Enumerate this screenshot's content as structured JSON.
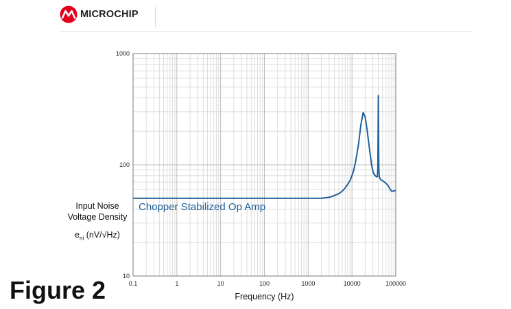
{
  "header": {
    "brand": "MICROCHIP",
    "brand_color": "#E3001B"
  },
  "figure_label": "Figure 2",
  "chart_data": {
    "type": "line",
    "title": "",
    "xlabel": "Frequency (Hz)",
    "ylabel_lines": [
      "Input Noise",
      "Voltage Density"
    ],
    "ylabel_unit_prefix": "e",
    "ylabel_unit_sub": "ni",
    "ylabel_unit_suffix": " (nV/√Hz)",
    "x_scale": "log",
    "y_scale": "log",
    "xlim": [
      0.1,
      100000
    ],
    "ylim": [
      10,
      1000
    ],
    "x_ticks": [
      0.1,
      1,
      10,
      100,
      1000,
      10000,
      100000
    ],
    "x_tick_labels": [
      "0.1",
      "1",
      "10",
      "100",
      "1000",
      "10000",
      "100000"
    ],
    "y_ticks": [
      10,
      100,
      1000
    ],
    "y_tick_labels": [
      "10",
      "100",
      "1000"
    ],
    "grid": true,
    "line_color": "#1f5f9a",
    "series": [
      {
        "name": "Chopper Stabilized Op Amp",
        "x": [
          0.1,
          1,
          10,
          100,
          1000,
          2000,
          3000,
          4000,
          5000,
          6000,
          7000,
          8000,
          9000,
          10000,
          11000,
          12000,
          14000,
          16000,
          18000,
          20000,
          22000,
          24000,
          26000,
          28000,
          30000,
          32000,
          34000,
          36000,
          38000,
          39000,
          40000,
          41000,
          42000,
          44000,
          46000,
          50000,
          55000,
          60000,
          65000,
          70000,
          75000,
          80000,
          90000,
          100000
        ],
        "y": [
          50,
          50,
          50,
          50,
          50,
          50,
          51,
          53,
          55,
          58,
          62,
          67,
          72,
          80,
          90,
          105,
          150,
          230,
          295,
          270,
          210,
          160,
          125,
          100,
          88,
          82,
          80,
          78,
          78,
          95,
          420,
          95,
          78,
          75,
          73,
          72,
          70,
          68,
          66,
          63,
          60,
          58,
          58,
          59
        ]
      }
    ]
  }
}
